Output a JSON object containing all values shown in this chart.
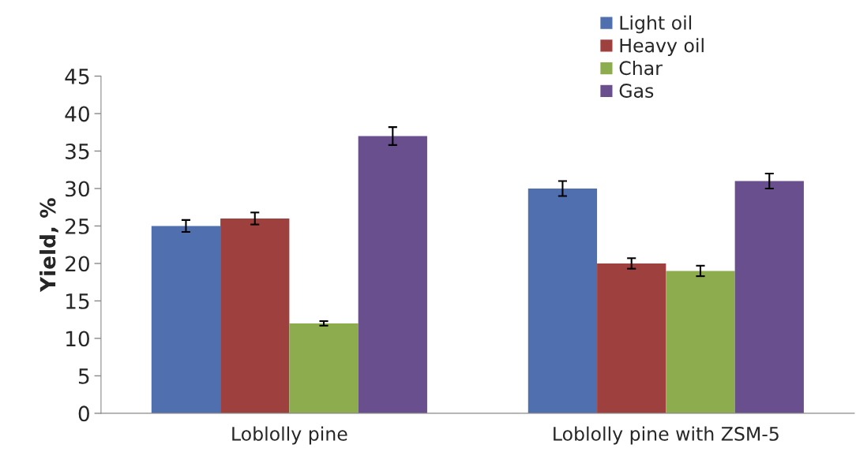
{
  "chart_data": {
    "type": "bar",
    "ylabel": "Yield, %",
    "categories": [
      "Loblolly pine",
      "Loblolly pine with ZSM-5"
    ],
    "series": [
      {
        "name": "Light oil",
        "color": "#4f6fae",
        "values": [
          25,
          30
        ],
        "errors": [
          0.8,
          1
        ]
      },
      {
        "name": "Heavy oil",
        "color": "#9e413e",
        "values": [
          26,
          20
        ],
        "errors": [
          0.8,
          0.7
        ]
      },
      {
        "name": "Char",
        "color": "#8cac4e",
        "values": [
          12,
          19
        ],
        "errors": [
          0.3,
          0.7
        ]
      },
      {
        "name": "Gas",
        "color": "#6a4f8f",
        "values": [
          37,
          31
        ],
        "errors": [
          1.2,
          1
        ]
      }
    ],
    "ylim": [
      0,
      45
    ],
    "yticks": [
      0,
      5,
      10,
      15,
      20,
      25,
      30,
      35,
      40,
      45
    ],
    "grid": false,
    "legend": "top right"
  }
}
